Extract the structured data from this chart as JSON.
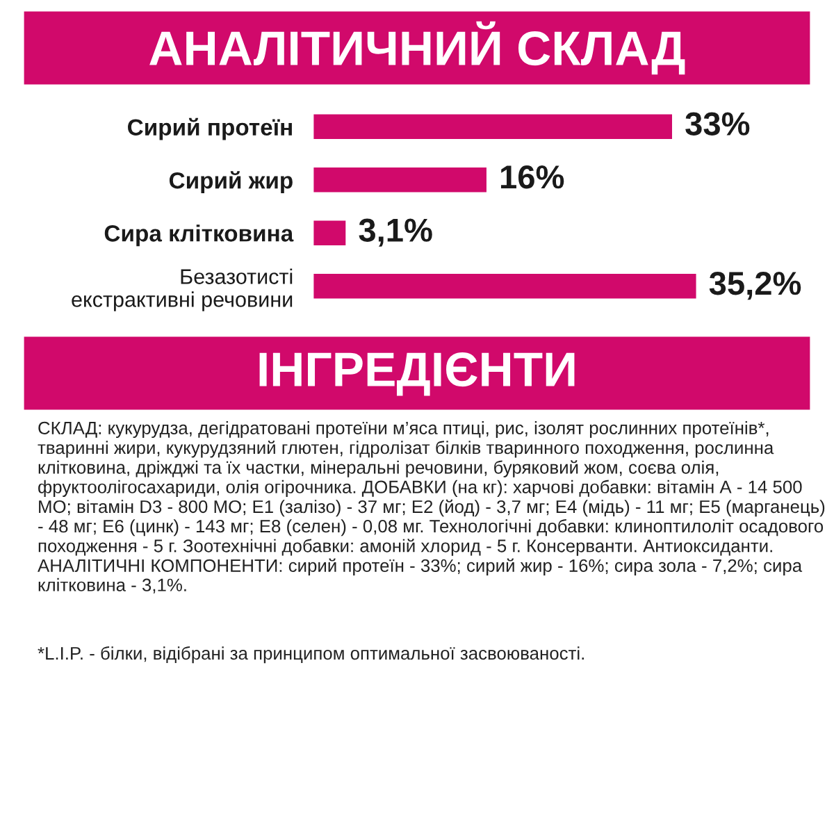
{
  "chart_data": {
    "type": "bar",
    "orientation": "horizontal",
    "title": "АНАЛІТИЧНИЙ СКЛАД",
    "categories": [
      "Сирий протеїн",
      "Сирий жир",
      "Сира клітковина",
      "Безазотисті\nекстрактивні речовини"
    ],
    "values": [
      33,
      16,
      3.1,
      35.2
    ],
    "value_labels": [
      "33%",
      "16%",
      "3,1%",
      "35,2%"
    ],
    "color": "#d1096b",
    "annotations": [
      "ІНГРЕДІЄНТИ",
      "СКЛАД: кукурудза, дегідратовані протеїни м’яса птиці, рис, ізолят рослинних протеїнів*, тваринні жири, кукурудзяний глютен, гідролізат білків тваринного походження, рослинна клітковина, дріжджі та їх частки, мінеральні речовини, буряковий жом, соєва олія, фруктоолігосахариди, олія огірочника. ДОБАВКИ (на кг): харчові добавки: вітамін А - 14 500 МО; вітамін D3 - 800 МО; Е1 (залізо) - 37 мг; Е2 (йод) - 3,7 мг; Е4 (мідь) - 11 мг; Е5 (марганець) - 48 мг; Е6 (цинк) - 143 мг; Е8 (селен) - 0,08 мг. Технологічні добавки: клиноптилоліт осадового походження - 5 г. Зоотехнічні добавки: амоній хлорид - 5 г. Консерванти. Антиоксиданти. АНАЛІТИЧНІ КОМПОНЕНТИ: сирий протеїн - 33%; сирий жир - 16%; сира зола - 7,2%; сира клітковина - 3,1%.",
      "*L.I.P. - білки, відібрані за принципом оптимальної засвоюваності."
    ]
  }
}
